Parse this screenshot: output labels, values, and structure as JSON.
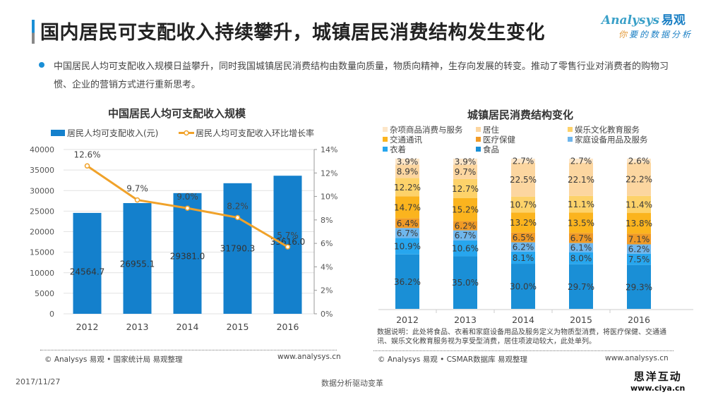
{
  "header": {
    "title": "国内居民可支配收入持续攀升，城镇居民消费结构发生变化",
    "logo_en": "Analysys",
    "logo_cn": "易观",
    "logo_slogan_first": "你",
    "logo_slogan_rest": "要的数据分析"
  },
  "bullet": {
    "text": "中国居民人均可支配收入规模日益攀升，同时我国城镇居民消费结构由数量向质量，物质向精神，生存向发展的转变。推动了零售行业对消费者的购物习惯、企业的营销方式进行重新思考。"
  },
  "left_panel": {
    "source": "© Analysys 易观 • 国家统计局  易观整理",
    "url": "www.analysys.cn"
  },
  "right_panel": {
    "note": "数据说明：此处将食品、衣着和家庭设备用品及服务定义为物质型消费，将医疗保健、交通通讯、娱乐文化教育服务视为享受型消费，居住项波动较大，此处单列。",
    "source": "© Analysys 易观 • CSMAR数据库  易观整理",
    "url": "www.analysys.cn"
  },
  "footer": {
    "date": "2017/11/27",
    "center": "数据分析驱动变革",
    "watermark_line1": "思洋互动",
    "watermark_line2": "www.ciya.cn"
  },
  "chart_data": [
    {
      "type": "bar",
      "title": "中国居民人均可支配收入规模",
      "categories": [
        "2012",
        "2013",
        "2014",
        "2015",
        "2016"
      ],
      "series": [
        {
          "name": "居民人均可支配收入(元)",
          "kind": "bar",
          "axis": "left",
          "color": "#1480cc",
          "values": [
            24564.7,
            26955.1,
            29381.0,
            31790.3,
            33616.0
          ],
          "labels": [
            "24564.7",
            "26955.1",
            "29381.0",
            "31790.3",
            "33616.0"
          ]
        },
        {
          "name": "居民人均可支配收入环比增长率",
          "kind": "line",
          "axis": "right",
          "color": "#f0a22a",
          "values": [
            12.6,
            9.7,
            9.0,
            8.2,
            5.7
          ],
          "labels": [
            "12.6%",
            "9.7%",
            "9.0%",
            "8.2%",
            "5.7%"
          ]
        }
      ],
      "ylim_left": [
        0,
        40000
      ],
      "yticks_left": [
        "0",
        "5000",
        "10000",
        "15000",
        "20000",
        "25000",
        "30000",
        "35000",
        "40000"
      ],
      "ylim_right": [
        0,
        14
      ],
      "yticks_right": [
        "0%",
        "2%",
        "4%",
        "6%",
        "8%",
        "10%",
        "12%",
        "14%"
      ],
      "grid": true,
      "legend": "top"
    },
    {
      "type": "bar",
      "stacked": true,
      "title": "城镇居民消费结构变化",
      "categories": [
        "2012",
        "2013",
        "2014",
        "2015",
        "2016"
      ],
      "series": [
        {
          "name": "食品",
          "color": "#1a8fd6",
          "values": [
            36.2,
            35.0,
            30.0,
            29.7,
            29.3
          ]
        },
        {
          "name": "衣着",
          "color": "#27a6ee",
          "values": [
            10.9,
            10.6,
            8.1,
            8.0,
            7.5
          ]
        },
        {
          "name": "家庭设备用品及服务",
          "color": "#6fb6ec",
          "values": [
            6.7,
            6.7,
            6.2,
            6.1,
            6.2
          ]
        },
        {
          "name": "医疗保健",
          "color": "#f09a26",
          "values": [
            6.4,
            6.2,
            6.5,
            6.7,
            7.1
          ]
        },
        {
          "name": "交通通讯",
          "color": "#fbb41e",
          "values": [
            14.7,
            15.2,
            13.2,
            13.5,
            13.8
          ]
        },
        {
          "name": "娱乐文化教育服务",
          "color": "#fdd26a",
          "values": [
            12.2,
            12.7,
            10.7,
            11.1,
            11.4
          ]
        },
        {
          "name": "居住",
          "color": "#fcd6a0",
          "values": [
            8.9,
            9.7,
            22.5,
            22.1,
            22.2
          ]
        },
        {
          "name": "杂项商品消费与服务",
          "color": "#fde6c8",
          "values": [
            3.9,
            3.9,
            2.7,
            2.7,
            2.6
          ]
        }
      ],
      "legend_order": [
        "杂项商品消费与服务",
        "居住",
        "娱乐文化教育服务",
        "交通通讯",
        "医疗保健",
        "家庭设备用品及服务",
        "衣着",
        "食品"
      ],
      "unit": "%",
      "legend": "top"
    }
  ]
}
